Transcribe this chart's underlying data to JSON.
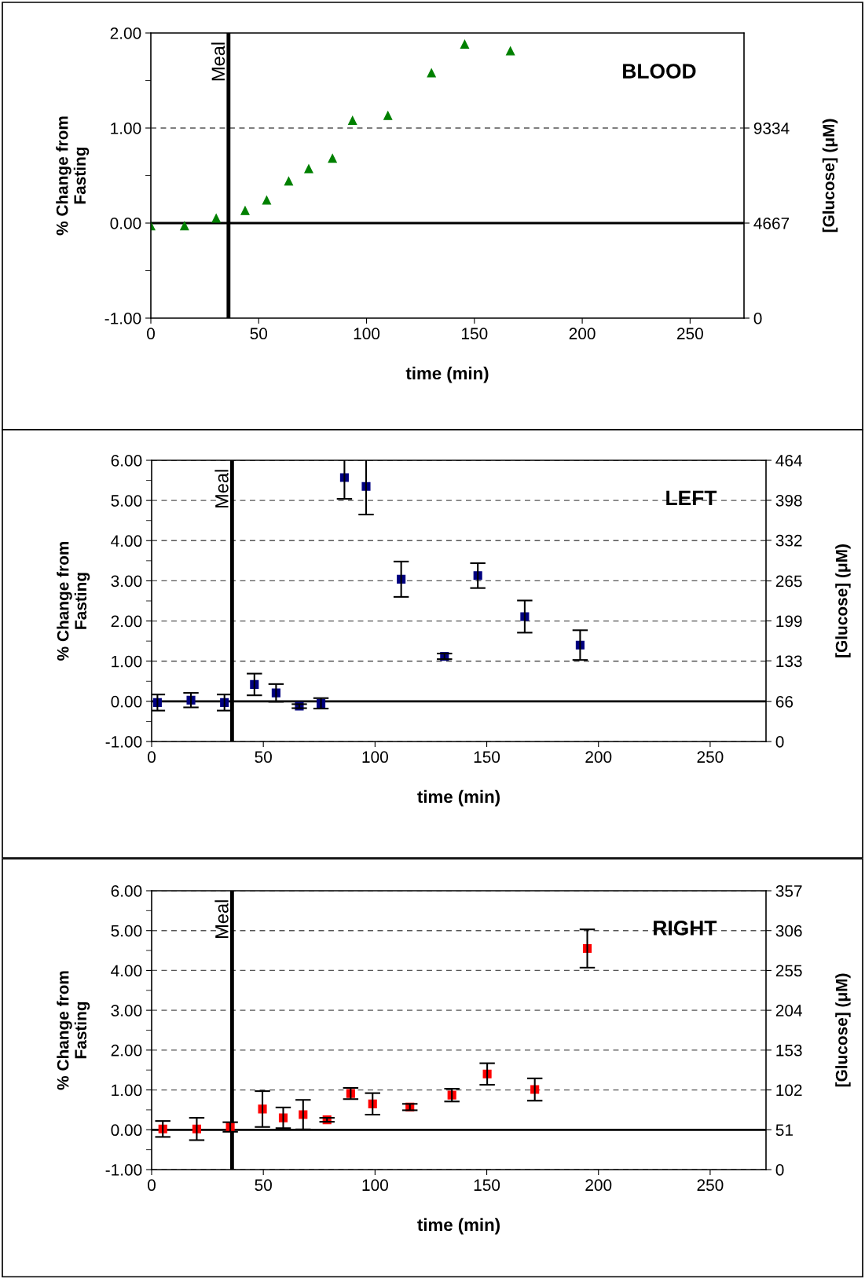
{
  "chart_data": [
    {
      "type": "scatter",
      "title": "BLOOD",
      "xlabel": "time (min)",
      "ylabel": "% Change from\nFasting",
      "y2label": "[Glucose] (μM)",
      "marker": "triangle",
      "xlim": [
        0,
        275
      ],
      "xticks": [
        0,
        50,
        100,
        150,
        200,
        250
      ],
      "ylim": [
        -1,
        2
      ],
      "yticks": [
        {
          "value": -1,
          "label": "-1.00"
        },
        {
          "value": -0.5,
          "label": null
        },
        {
          "value": 0,
          "label": "0.00"
        },
        {
          "value": 0.5,
          "label": null
        },
        {
          "value": 1,
          "label": "1.00"
        },
        {
          "value": 1.5,
          "label": null
        },
        {
          "value": 2,
          "label": "2.00"
        }
      ],
      "y2lim": [
        0,
        14001
      ],
      "y2ticks": [
        0,
        4667,
        9334
      ],
      "ref_lines": [
        {
          "axis": "y",
          "value": 0,
          "label": null
        },
        {
          "axis": "y",
          "value": 1,
          "label": null,
          "color": "#555555",
          "line_style": "dashed"
        },
        {
          "axis": "x",
          "value": 36,
          "label": "Meal"
        }
      ],
      "series": [
        {
          "color": "#008000",
          "x": [
            0,
            15.6,
            30.3,
            43.7,
            53.7,
            63.9,
            73.2,
            84.2,
            93.5,
            109.9,
            130.1,
            145.5,
            166.7
          ],
          "values": [
            -0.03,
            -0.03,
            0.05,
            0.13,
            0.24,
            0.44,
            0.57,
            0.68,
            1.08,
            1.13,
            1.58,
            1.88,
            1.81
          ]
        }
      ]
    },
    {
      "type": "scatter",
      "title": "LEFT",
      "xlabel": "time (min)",
      "ylabel": "% Change from\nFasting",
      "y2label": "[Glucose] (μM)",
      "marker": "square",
      "grid": "y",
      "xlim": [
        0,
        275
      ],
      "xticks": [
        0,
        50,
        100,
        150,
        200,
        250
      ],
      "ylim": [
        -1,
        6
      ],
      "yticks": [
        {
          "value": -1,
          "label": "-1.00"
        },
        {
          "value": -0.5,
          "label": null
        },
        {
          "value": 0,
          "label": "0.00"
        },
        {
          "value": 0.5,
          "label": null
        },
        {
          "value": 1,
          "label": "1.00"
        },
        {
          "value": 1.5,
          "label": null
        },
        {
          "value": 2,
          "label": "2.00"
        },
        {
          "value": 2.5,
          "label": null
        },
        {
          "value": 3,
          "label": "3.00"
        },
        {
          "value": 3.5,
          "label": null
        },
        {
          "value": 4,
          "label": "4.00"
        },
        {
          "value": 4.5,
          "label": null
        },
        {
          "value": 5,
          "label": "5.00"
        },
        {
          "value": 5.5,
          "label": null
        },
        {
          "value": 6,
          "label": "6.00"
        }
      ],
      "y2lim": [
        0,
        464
      ],
      "y2ticks": [
        0,
        66,
        133,
        199,
        265,
        332,
        398,
        464
      ],
      "ref_lines": [
        {
          "axis": "y",
          "value": 0,
          "label": null
        },
        {
          "axis": "x",
          "value": 36,
          "label": "Meal"
        }
      ],
      "series": [
        {
          "color": "#000080",
          "x": [
            2.6,
            17.6,
            32.6,
            46,
            55.7,
            66.1,
            75.8,
            86.3,
            96,
            111.7,
            131.1,
            146,
            167,
            191.8
          ],
          "values": [
            -0.03,
            0.03,
            -0.03,
            0.42,
            0.21,
            -0.12,
            -0.05,
            5.57,
            5.35,
            3.04,
            1.12,
            3.13,
            2.11,
            1.4
          ],
          "errors": [
            0.2,
            0.18,
            0.2,
            0.27,
            0.22,
            0.05,
            0.13,
            0.53,
            0.7,
            0.44,
            0.07,
            0.31,
            0.4,
            0.37
          ]
        }
      ]
    },
    {
      "type": "scatter",
      "title": "RIGHT",
      "xlabel": "time (min)",
      "ylabel": "% Change from\nFasting",
      "y2label": "[Glucose] (μM)",
      "marker": "square",
      "grid": "y",
      "xlim": [
        0,
        275
      ],
      "xticks": [
        0,
        50,
        100,
        150,
        200,
        250
      ],
      "ylim": [
        -1,
        6
      ],
      "yticks": [
        {
          "value": -1,
          "label": "-1.00"
        },
        {
          "value": -0.5,
          "label": null
        },
        {
          "value": 0,
          "label": "0.00"
        },
        {
          "value": 0.5,
          "label": null
        },
        {
          "value": 1,
          "label": "1.00"
        },
        {
          "value": 1.5,
          "label": null
        },
        {
          "value": 2,
          "label": "2.00"
        },
        {
          "value": 2.5,
          "label": null
        },
        {
          "value": 3,
          "label": "3.00"
        },
        {
          "value": 3.5,
          "label": null
        },
        {
          "value": 4,
          "label": "4.00"
        },
        {
          "value": 4.5,
          "label": null
        },
        {
          "value": 5,
          "label": "5.00"
        },
        {
          "value": 5.5,
          "label": null
        },
        {
          "value": 6,
          "label": "6.00"
        }
      ],
      "y2lim": [
        0,
        357
      ],
      "y2ticks": [
        0,
        51,
        102,
        153,
        204,
        255,
        306,
        357
      ],
      "ref_lines": [
        {
          "axis": "y",
          "value": 0,
          "label": null
        },
        {
          "axis": "x",
          "value": 36,
          "label": "Meal"
        }
      ],
      "series": [
        {
          "color": "#ff0000",
          "x": [
            5,
            20.2,
            35.2,
            49.6,
            58.9,
            67.8,
            78.5,
            89.1,
            98.9,
            115.6,
            134.4,
            150.2,
            171.5,
            195
          ],
          "values": [
            0.02,
            0.02,
            0.07,
            0.52,
            0.3,
            0.38,
            0.25,
            0.91,
            0.65,
            0.57,
            0.87,
            1.4,
            1.01,
            4.55
          ],
          "errors": [
            0.2,
            0.28,
            0.12,
            0.45,
            0.26,
            0.37,
            0.05,
            0.14,
            0.27,
            0.08,
            0.16,
            0.27,
            0.28,
            0.48
          ]
        }
      ]
    }
  ]
}
